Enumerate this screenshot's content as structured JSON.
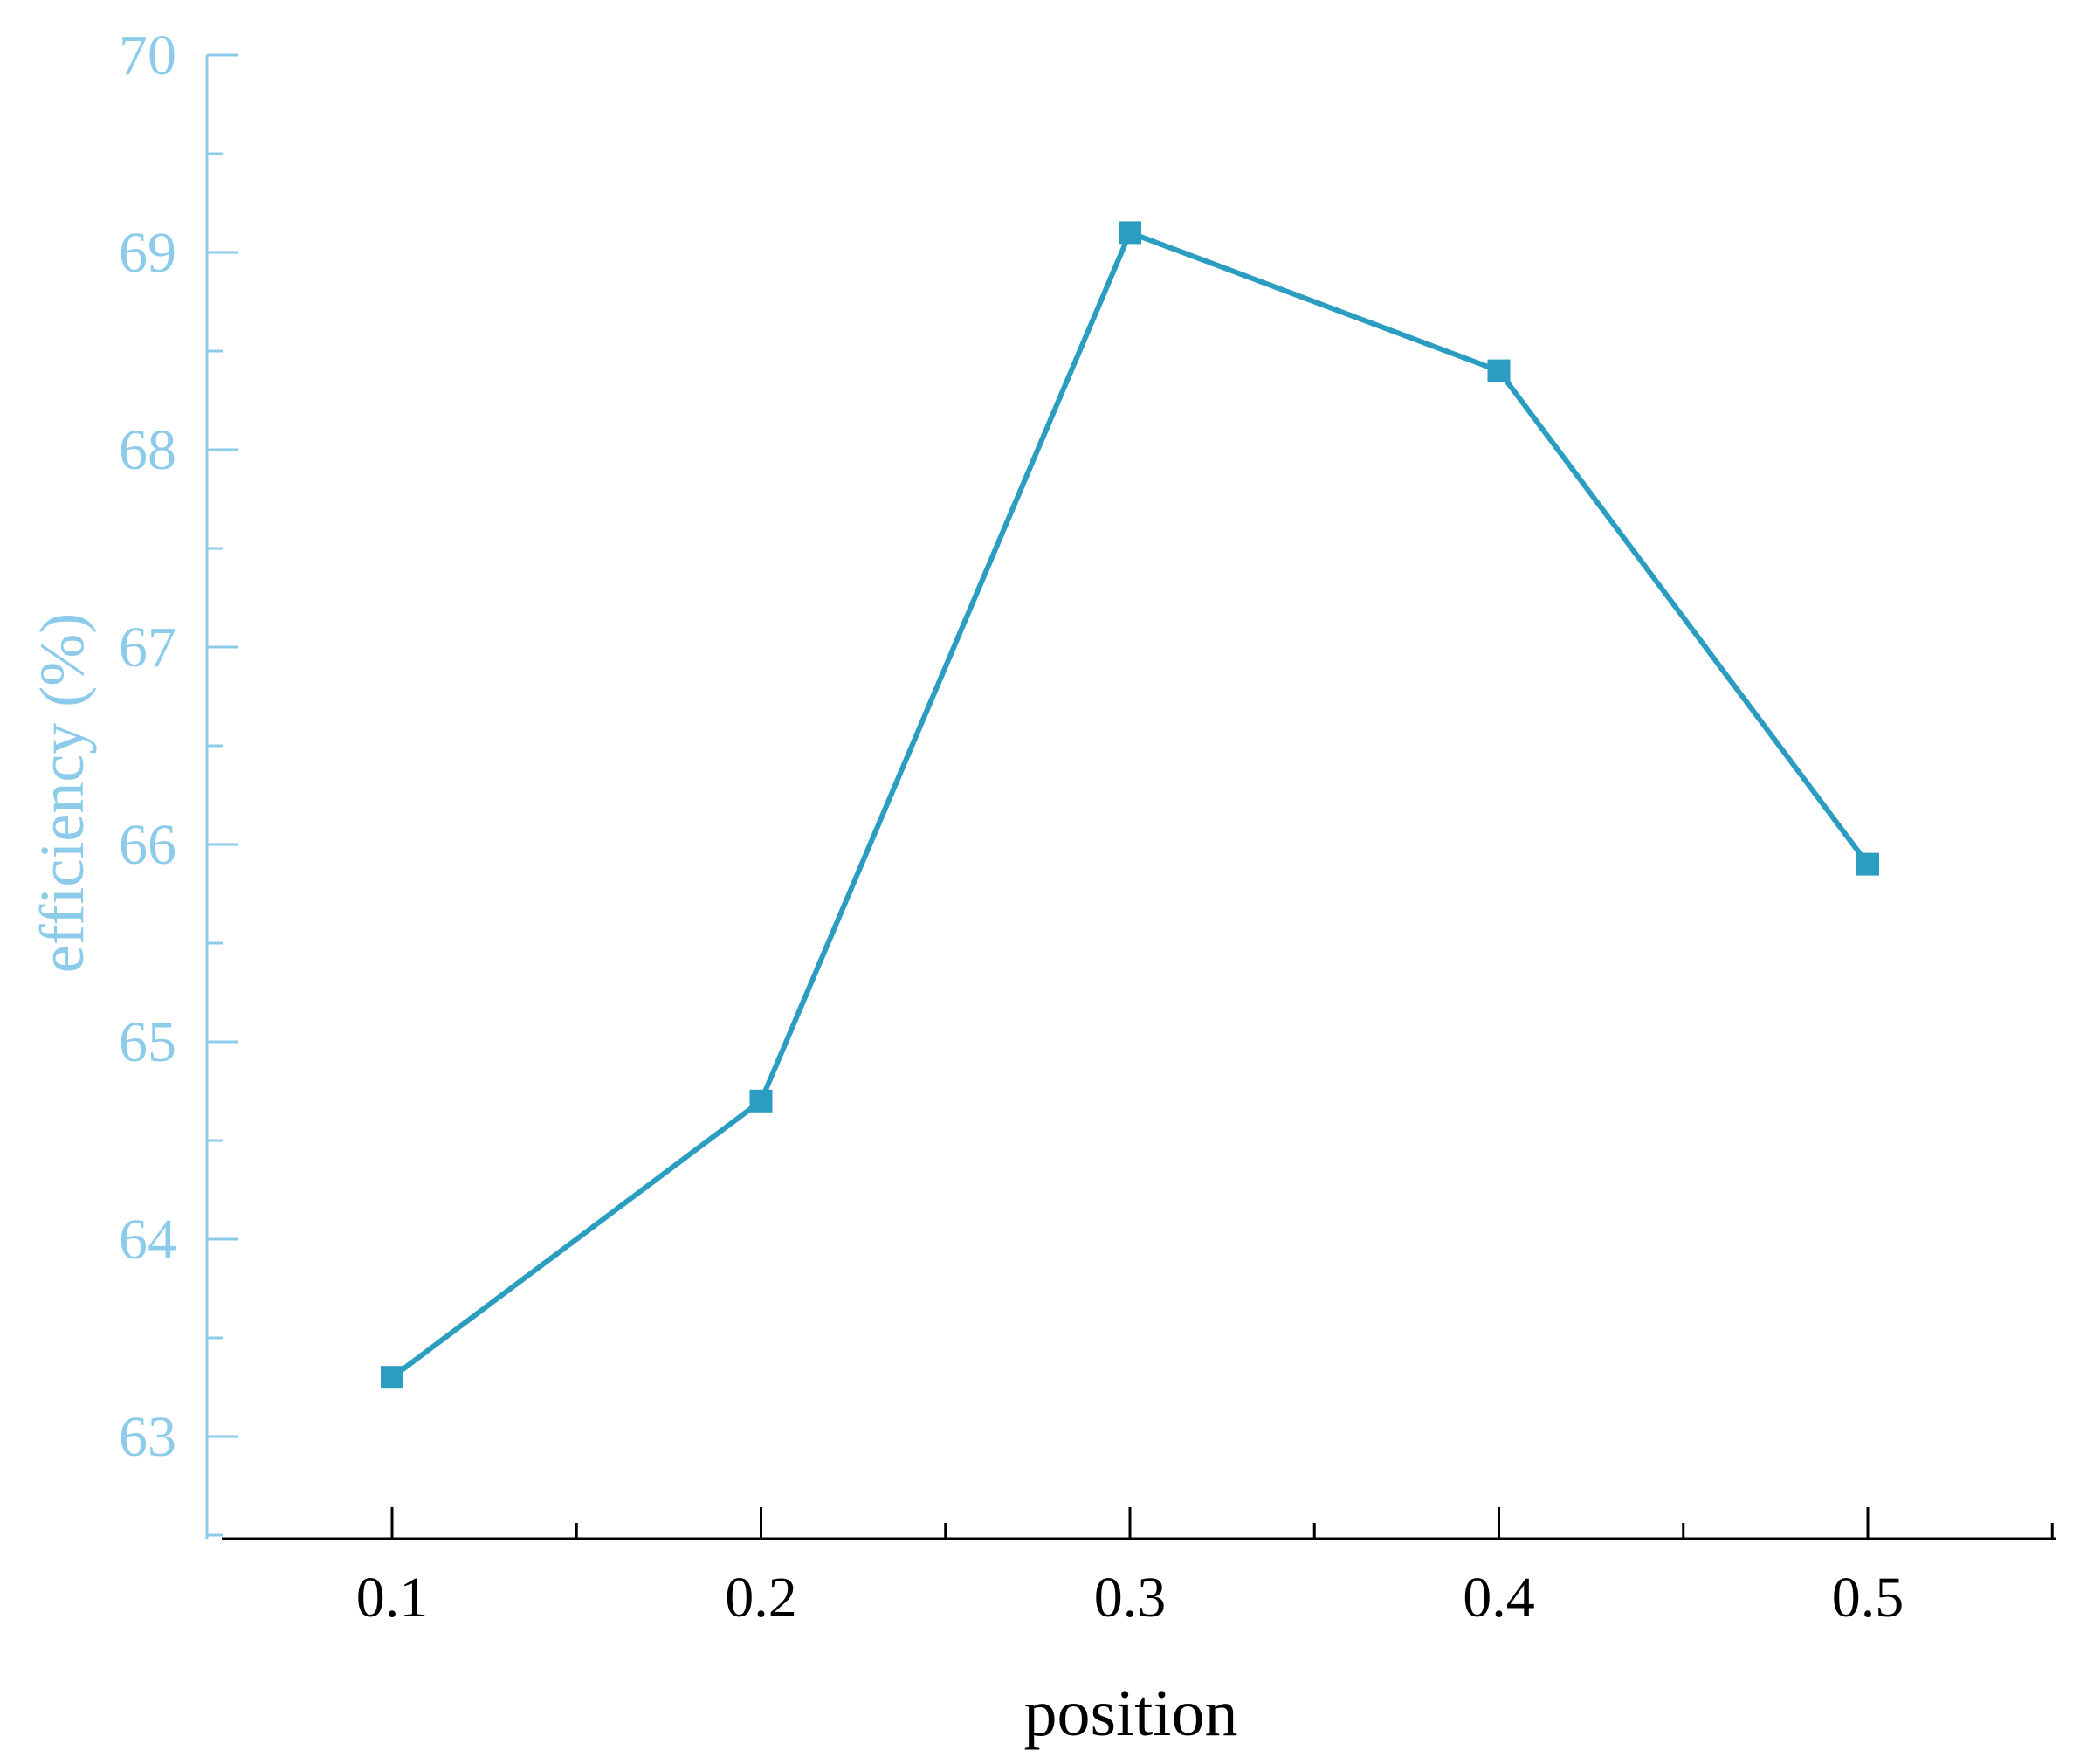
{
  "chart_data": {
    "type": "line",
    "title": "",
    "xlabel": "position",
    "ylabel": "efficiency (%)",
    "x": [
      0.1,
      0.2,
      0.3,
      0.4,
      0.5
    ],
    "x_tick_labels": [
      "0.1",
      "0.2",
      "0.3",
      "0.4",
      "0.5"
    ],
    "series": [
      {
        "values": [
          63.3,
          64.7,
          69.1,
          68.4,
          65.9
        ]
      }
    ],
    "xlim": [
      0.05,
      0.55
    ],
    "ylim": [
      62.5,
      70
    ],
    "y_ticks": [
      63,
      64,
      65,
      66,
      67,
      68,
      69,
      70
    ],
    "y_tick_labels": [
      "63",
      "64",
      "65",
      "66",
      "67",
      "68",
      "69",
      "70"
    ],
    "grid": false,
    "legend": "none",
    "marker": "square"
  },
  "colors": {
    "series": "#2A9DC0",
    "y_axis": "#8CCBEA",
    "x_axis": "#000000",
    "background": "#FFFFFF"
  }
}
